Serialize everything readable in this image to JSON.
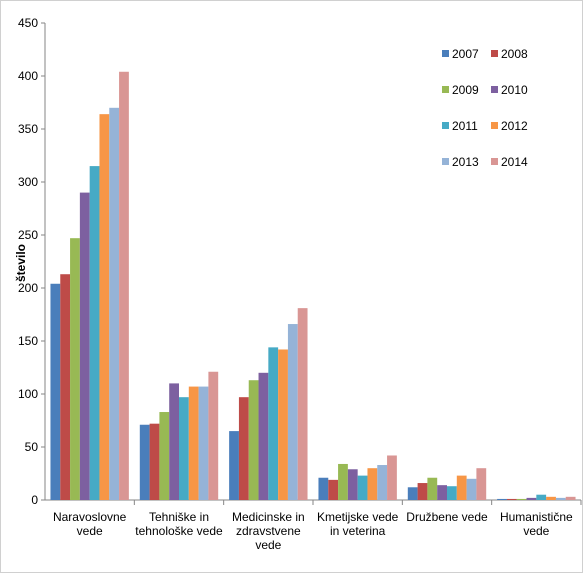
{
  "chart_data": {
    "type": "bar",
    "title": "",
    "xlabel": "",
    "ylabel": "število",
    "ylim": [
      0,
      450
    ],
    "yticks": [
      0,
      50,
      100,
      150,
      200,
      250,
      300,
      350,
      400,
      450
    ],
    "grid": false,
    "legend_position": "top-right",
    "categories": [
      [
        "Naravoslovne",
        "vede"
      ],
      [
        "Tehniške in",
        "tehnološke vede"
      ],
      [
        "Medicinske in",
        "zdravstvene",
        "vede"
      ],
      [
        "Kmetijske vede",
        "in veterina"
      ],
      [
        "Družbene vede"
      ],
      [
        "Humanistične",
        "vede"
      ]
    ],
    "series": [
      {
        "name": "2007",
        "color": "#4a7ebb",
        "values": [
          204,
          71,
          65,
          21,
          12,
          1
        ]
      },
      {
        "name": "2008",
        "color": "#be4b48",
        "values": [
          213,
          72,
          97,
          19,
          16,
          1
        ]
      },
      {
        "name": "2009",
        "color": "#98b954",
        "values": [
          247,
          83,
          113,
          34,
          21,
          1
        ]
      },
      {
        "name": "2010",
        "color": "#7d60a0",
        "values": [
          290,
          110,
          120,
          29,
          14,
          2
        ]
      },
      {
        "name": "2011",
        "color": "#46aac5",
        "values": [
          315,
          97,
          144,
          23,
          13,
          5
        ]
      },
      {
        "name": "2012",
        "color": "#f79646",
        "values": [
          364,
          107,
          142,
          30,
          23,
          3
        ]
      },
      {
        "name": "2013",
        "color": "#95b3d7",
        "values": [
          370,
          107,
          166,
          33,
          20,
          2
        ]
      },
      {
        "name": "2014",
        "color": "#d99694",
        "values": [
          404,
          121,
          181,
          42,
          30,
          3
        ]
      }
    ]
  }
}
